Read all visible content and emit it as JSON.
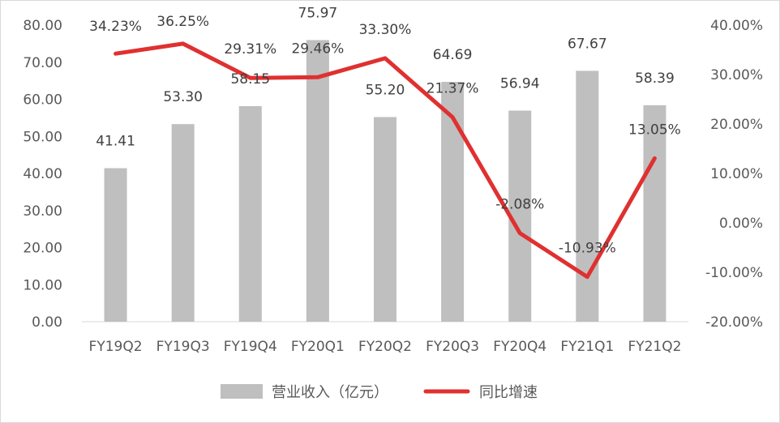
{
  "chart_data": {
    "type": "bar+line",
    "categories": [
      "FY19Q2",
      "FY19Q3",
      "FY19Q4",
      "FY20Q1",
      "FY20Q2",
      "FY20Q3",
      "FY20Q4",
      "FY21Q1",
      "FY21Q2"
    ],
    "series": [
      {
        "name": "营业收入（亿元）",
        "type": "bar",
        "axis": "left",
        "color": "#bfbfbf",
        "values": [
          41.41,
          53.3,
          58.15,
          75.97,
          55.2,
          64.69,
          56.94,
          67.67,
          58.39
        ],
        "labels": [
          "41.41",
          "53.30",
          "58.15",
          "75.97",
          "55.20",
          "64.69",
          "56.94",
          "67.67",
          "58.39"
        ]
      },
      {
        "name": "同比增速",
        "type": "line",
        "axis": "right",
        "color": "#e03030",
        "values": [
          34.23,
          36.25,
          29.31,
          29.46,
          33.3,
          21.37,
          -2.08,
          -10.93,
          13.05
        ],
        "labels": [
          "34.23%",
          "36.25%",
          "29.31%",
          "29.46%",
          "33.30%",
          "21.37%",
          "-2.08%",
          "-10.93%",
          "13.05%"
        ]
      }
    ],
    "y_left": {
      "min": 0,
      "max": 80,
      "step": 10,
      "tick_labels": [
        "0.00",
        "10.00",
        "20.00",
        "30.00",
        "40.00",
        "50.00",
        "60.00",
        "70.00",
        "80.00"
      ]
    },
    "y_right": {
      "min": -20,
      "max": 40,
      "step": 10,
      "tick_labels": [
        "-20.00%",
        "-10.00%",
        "0.00%",
        "10.00%",
        "20.00%",
        "30.00%",
        "40.00%"
      ]
    },
    "grid": false,
    "legend": "bottom"
  }
}
